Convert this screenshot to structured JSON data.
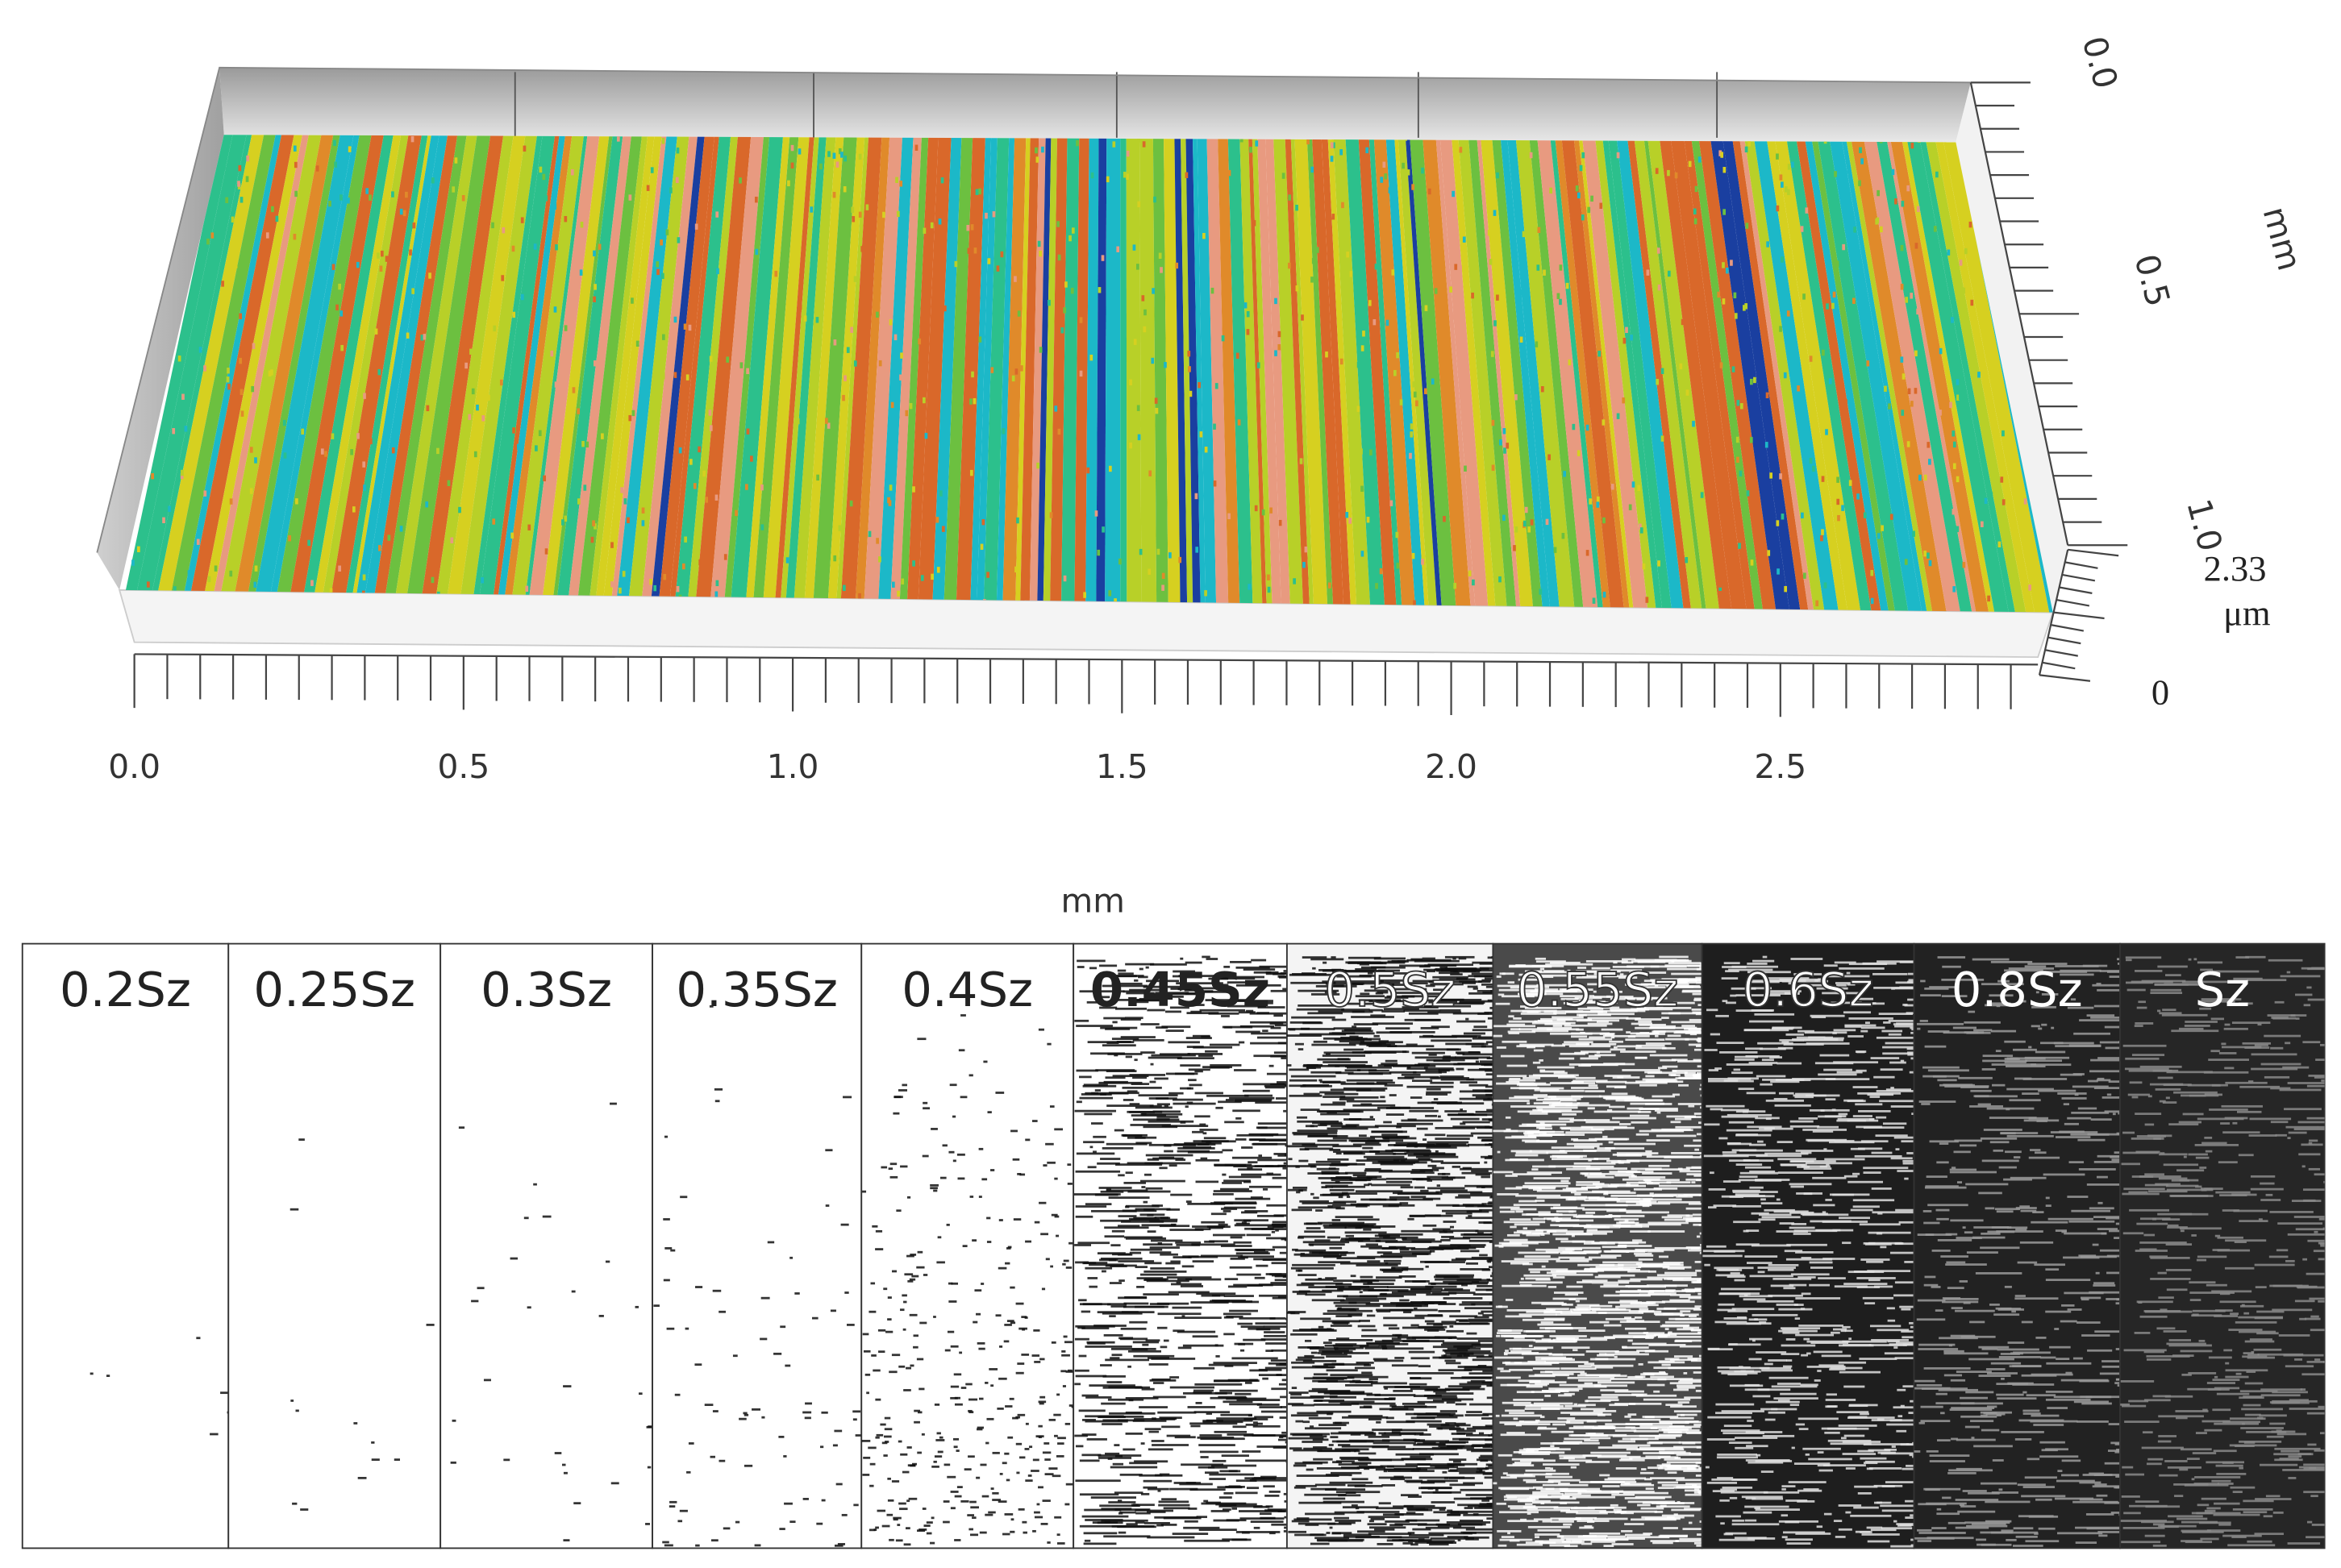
{
  "surface_plot": {
    "x_axis": {
      "tick_labels": [
        "0.0",
        "0.5",
        "1.0",
        "1.5",
        "2.0",
        "2.5"
      ],
      "unit": "mm"
    },
    "y_axis": {
      "tick_labels": [
        "0.0",
        "0.5",
        "1.0"
      ],
      "unit": "mm"
    },
    "z_axis": {
      "tick_labels": [
        "0",
        "2.33"
      ],
      "unit": "μm"
    }
  },
  "threshold_panels": [
    {
      "label": "0.2Sz"
    },
    {
      "label": "0.25Sz"
    },
    {
      "label": "0.3Sz"
    },
    {
      "label": "0.35Sz"
    },
    {
      "label": "0.4Sz"
    },
    {
      "label": "0.45Sz"
    },
    {
      "label": "0.5Sz"
    },
    {
      "label": "0.55Sz"
    },
    {
      "label": "0.6Sz"
    },
    {
      "label": "0.8Sz"
    },
    {
      "label": "Sz"
    }
  ]
}
